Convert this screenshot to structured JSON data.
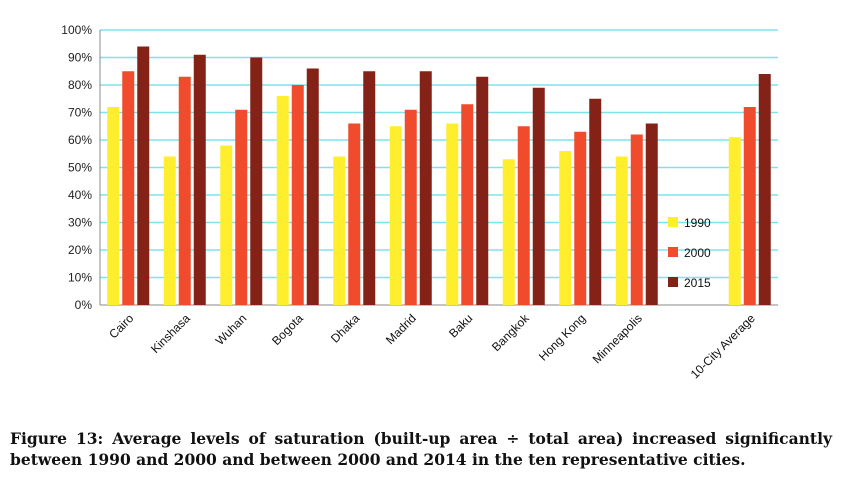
{
  "chart_data": {
    "type": "bar",
    "categories": [
      "Cairo",
      "Kinshasa",
      "Wuhan",
      "Bogota",
      "Dhaka",
      "Madrid",
      "Baku",
      "Bangkok",
      "Hong Kong",
      "Minneapolis",
      "10-City Average"
    ],
    "series": [
      {
        "name": "1990",
        "color": "#ffee2e",
        "values": [
          72,
          54,
          58,
          76,
          54,
          65,
          66,
          53,
          56,
          54,
          61
        ]
      },
      {
        "name": "2000",
        "color": "#ef4b2c",
        "values": [
          85,
          83,
          71,
          80,
          66,
          71,
          73,
          65,
          63,
          62,
          72
        ]
      },
      {
        "name": "2015",
        "color": "#842218",
        "values": [
          94,
          91,
          90,
          86,
          85,
          85,
          83,
          79,
          75,
          66,
          84
        ]
      }
    ],
    "ylim": [
      0,
      100
    ],
    "yticks": [
      "0%",
      "10%",
      "20%",
      "30%",
      "40%",
      "50%",
      "60%",
      "70%",
      "80%",
      "90%",
      "100%"
    ],
    "grid": true,
    "grid_color": "#7ee3ee",
    "legend_position": "bottom-right inside plot"
  },
  "caption": "Figure 13: Average levels of saturation (built-up area ÷ total area) increased significantly between 1990 and 2000 and between 2000 and 2014 in the ten representative cities."
}
